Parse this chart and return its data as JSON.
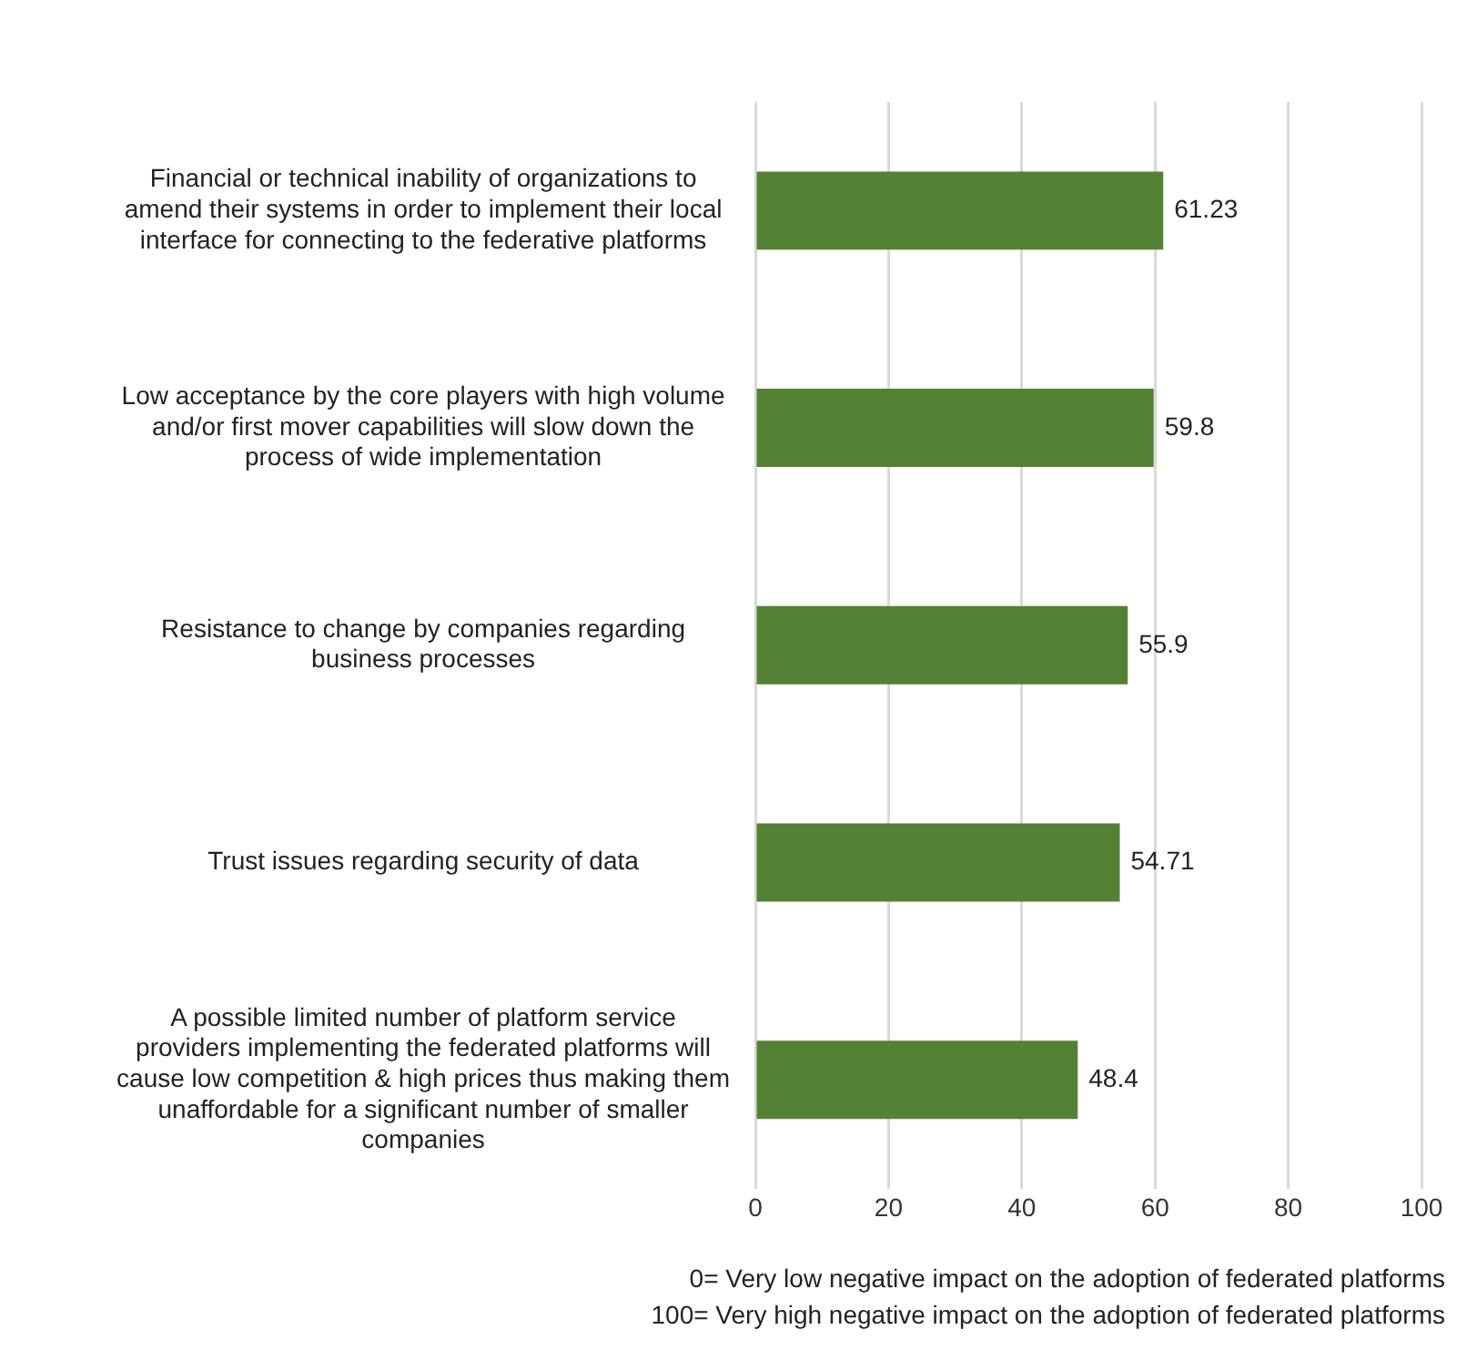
{
  "chart_data": {
    "type": "bar",
    "orientation": "horizontal",
    "categories": [
      "Financial or technical inability of organizations to amend their systems in order to implement their local interface for connecting to the federative platforms",
      "Low acceptance by the core players with high volume and/or first mover capabilities will slow down the process of wide implementation",
      "Resistance to change by companies regarding business processes",
      "Trust issues regarding security of data",
      "A possible limited number of platform service providers implementing the federated platforms will cause low competition & high prices thus making them unaffordable for a significant number of smaller companies"
    ],
    "values": [
      61.23,
      59.8,
      55.9,
      54.71,
      48.4
    ],
    "color": "#548235",
    "xlim": [
      0,
      100
    ],
    "xticks": [
      0,
      20,
      40,
      60,
      80,
      100
    ],
    "grid": "x",
    "legend": false,
    "data_labels": true,
    "annotations": [
      "0= Very low negative impact on the adoption of federated platforms",
      "100= Very high negative impact on the adoption of federated platforms"
    ]
  }
}
